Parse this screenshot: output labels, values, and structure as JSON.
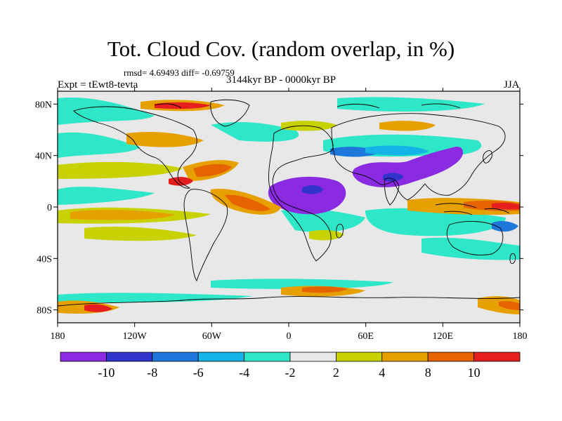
{
  "title": "Tot. Cloud Cov. (random overlap, in %)",
  "stats": "rmsd= 4.69493 diff= -0.69759",
  "expt": "Expt = tEwt8-tevta",
  "period": "3144kyr BP - 0000kyr BP",
  "season": "JJA",
  "lon_ticks": [
    "180",
    "120W",
    "60W",
    "0",
    "60E",
    "120E",
    "180"
  ],
  "lat_ticks": [
    "80N",
    "40N",
    "0",
    "40S",
    "80S"
  ],
  "colorbar": {
    "colors": [
      "#8a2be2",
      "#3232cd",
      "#1e78dc",
      "#14b4e6",
      "#2ee6c8",
      "#e8e8e8",
      "#c8d200",
      "#e6a000",
      "#e66400",
      "#e61e1e"
    ],
    "labels": [
      "-10",
      "-8",
      "-6",
      "-4",
      "-2",
      "2",
      "4",
      "8",
      "10"
    ]
  }
}
